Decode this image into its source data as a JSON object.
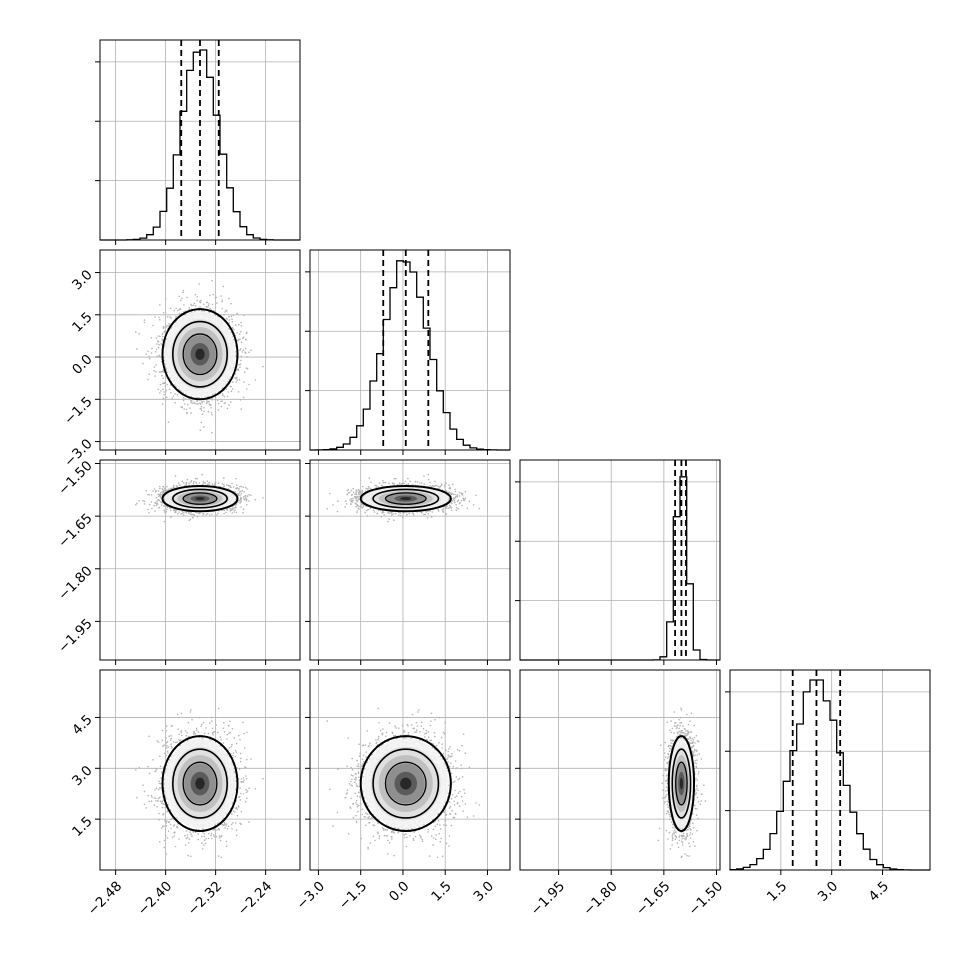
{
  "chart_data": {
    "type": "corner",
    "parameters": [
      {
        "id": "p0",
        "range": [
          -2.505,
          -2.185
        ],
        "ticks": [
          -2.48,
          -2.4,
          -2.32,
          -2.24
        ],
        "tick_labels": [
          "−2.48",
          "−2.40",
          "−2.32",
          "−2.24"
        ],
        "mean": -2.345,
        "sigma": 0.03,
        "quantiles": [
          -2.375,
          -2.345,
          -2.315
        ]
      },
      {
        "id": "p1",
        "range": [
          -3.3,
          3.8
        ],
        "ticks": [
          -3.0,
          -1.5,
          0.0,
          1.5,
          3.0
        ],
        "tick_labels": [
          "−3.0",
          "−1.5",
          "0.0",
          "1.5",
          "3.0"
        ],
        "mean": 0.1,
        "sigma": 0.8,
        "quantiles": [
          -0.7,
          0.1,
          0.9
        ]
      },
      {
        "id": "p2",
        "range": [
          -2.06,
          -1.49
        ],
        "ticks": [
          -1.95,
          -1.8,
          -1.65,
          -1.5
        ],
        "tick_labels": [
          "−1.95",
          "−1.80",
          "−1.65",
          "−1.50"
        ],
        "mean": -1.6,
        "sigma": 0.018,
        "quantiles": [
          -1.618,
          -1.6,
          -1.587
        ]
      },
      {
        "id": "p3",
        "range": [
          0.0,
          5.9
        ],
        "ticks": [
          1.5,
          3.0,
          4.5
        ],
        "tick_labels": [
          "1.5",
          "3.0",
          "4.5"
        ],
        "mean": 2.55,
        "sigma": 0.7,
        "quantiles": [
          1.85,
          2.55,
          3.25
        ]
      }
    ],
    "hist_peak_fraction": 0.95,
    "grid": true,
    "legend": "none"
  }
}
